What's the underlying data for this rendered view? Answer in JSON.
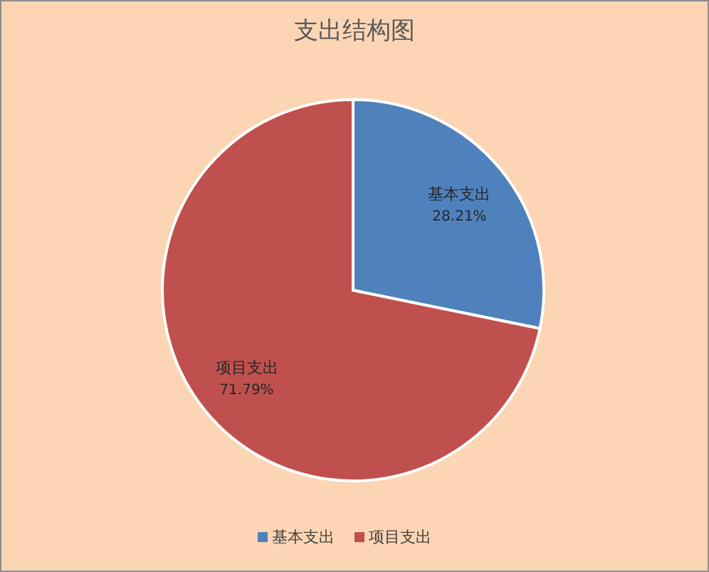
{
  "chart_data": {
    "type": "pie",
    "title": "支出结构图",
    "categories": [
      "基本支出",
      "项目支出"
    ],
    "values": [
      28.21,
      71.79
    ],
    "colors": [
      "#4f81bd",
      "#c0504d"
    ],
    "value_labels": [
      "28.21%",
      "71.79%"
    ],
    "legend": "bottom"
  }
}
